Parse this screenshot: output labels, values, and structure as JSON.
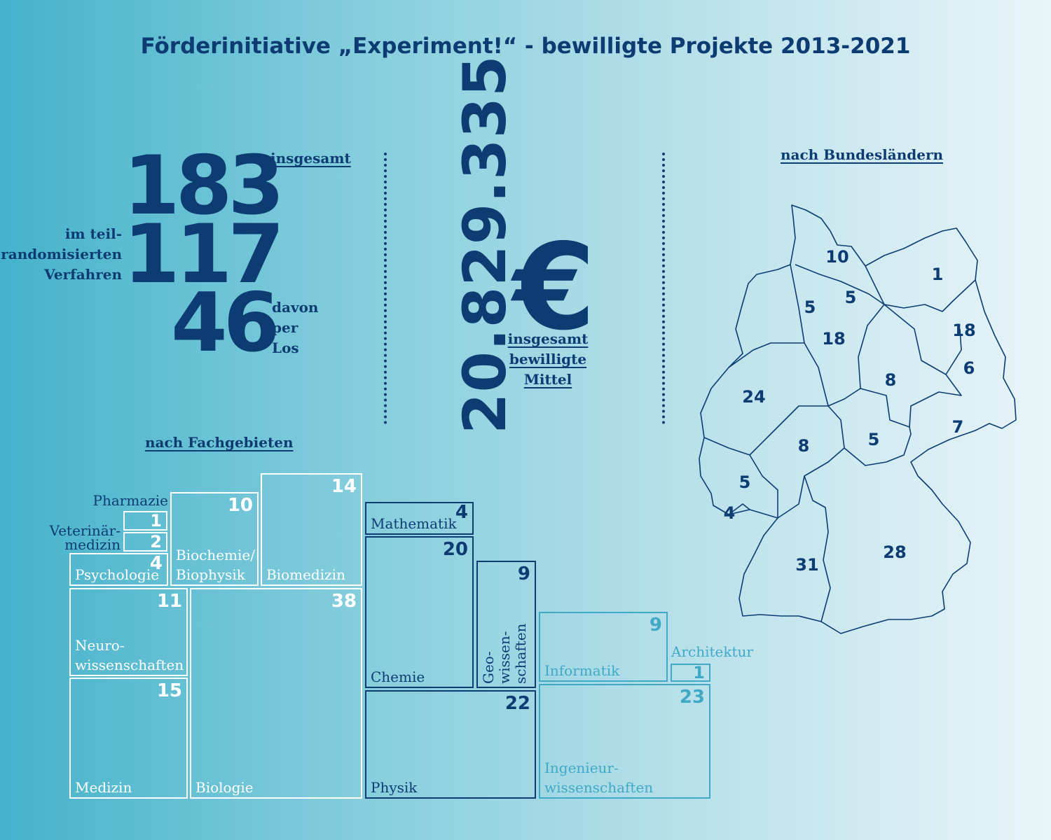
{
  "title": "Förderinitiative „Experiment!“ - bewilligte Projekte 2013-2021",
  "totals": {
    "total": "183",
    "total_label": "insgesamt",
    "partial": "117",
    "partial_label_1": "im teil-",
    "partial_label_2": "randomisierten",
    "partial_label_3": "Verfahren",
    "lottery": "46",
    "lottery_label_1": "davon",
    "lottery_label_2": "per",
    "lottery_label_3": "Los",
    "funds": "20.829.335",
    "currency": "€",
    "funds_label_1": "insgesamt",
    "funds_label_2": "bewilligte",
    "funds_label_3": "Mittel"
  },
  "colors": {
    "dark_blue": "#0d3c73",
    "white": "#ffffff",
    "cyan": "#3fa9c6"
  },
  "chart_data": [
    {
      "type": "treemap",
      "title": "nach Fachgebieten",
      "items": [
        {
          "label": "Pharmazie",
          "value": 1
        },
        {
          "label": "Veterinär-medizin",
          "label_1": "Veterinär-",
          "label_2": "medizin",
          "value": 2
        },
        {
          "label": "Psychologie",
          "value": 4
        },
        {
          "label": "Biochemie/Biophysik",
          "label_1": "Biochemie/",
          "label_2": "Biophysik",
          "value": 10
        },
        {
          "label": "Biomedizin",
          "value": 14
        },
        {
          "label": "Neurowissenschaften",
          "label_1": "Neuro-",
          "label_2": "wissenschaften",
          "value": 11
        },
        {
          "label": "Medizin",
          "value": 15
        },
        {
          "label": "Biologie",
          "value": 38
        },
        {
          "label": "Mathematik",
          "value": 4
        },
        {
          "label": "Chemie",
          "value": 20
        },
        {
          "label": "Geowissenschaften",
          "label_1": "Geo-",
          "label_2": "wissen-",
          "label_3": "schaften",
          "value": 9
        },
        {
          "label": "Physik",
          "value": 22
        },
        {
          "label": "Informatik",
          "value": 9
        },
        {
          "label": "Architektur",
          "value": 1
        },
        {
          "label": "Ingenieurwissenschaften",
          "label_1": "Ingenieur-",
          "label_2": "wissenschaften",
          "value": 23
        }
      ]
    },
    {
      "type": "map",
      "title": "nach Bundesländern",
      "values": [
        10,
        1,
        5,
        5,
        18,
        18,
        6,
        8,
        24,
        7,
        8,
        5,
        5,
        4,
        31,
        28
      ]
    }
  ]
}
